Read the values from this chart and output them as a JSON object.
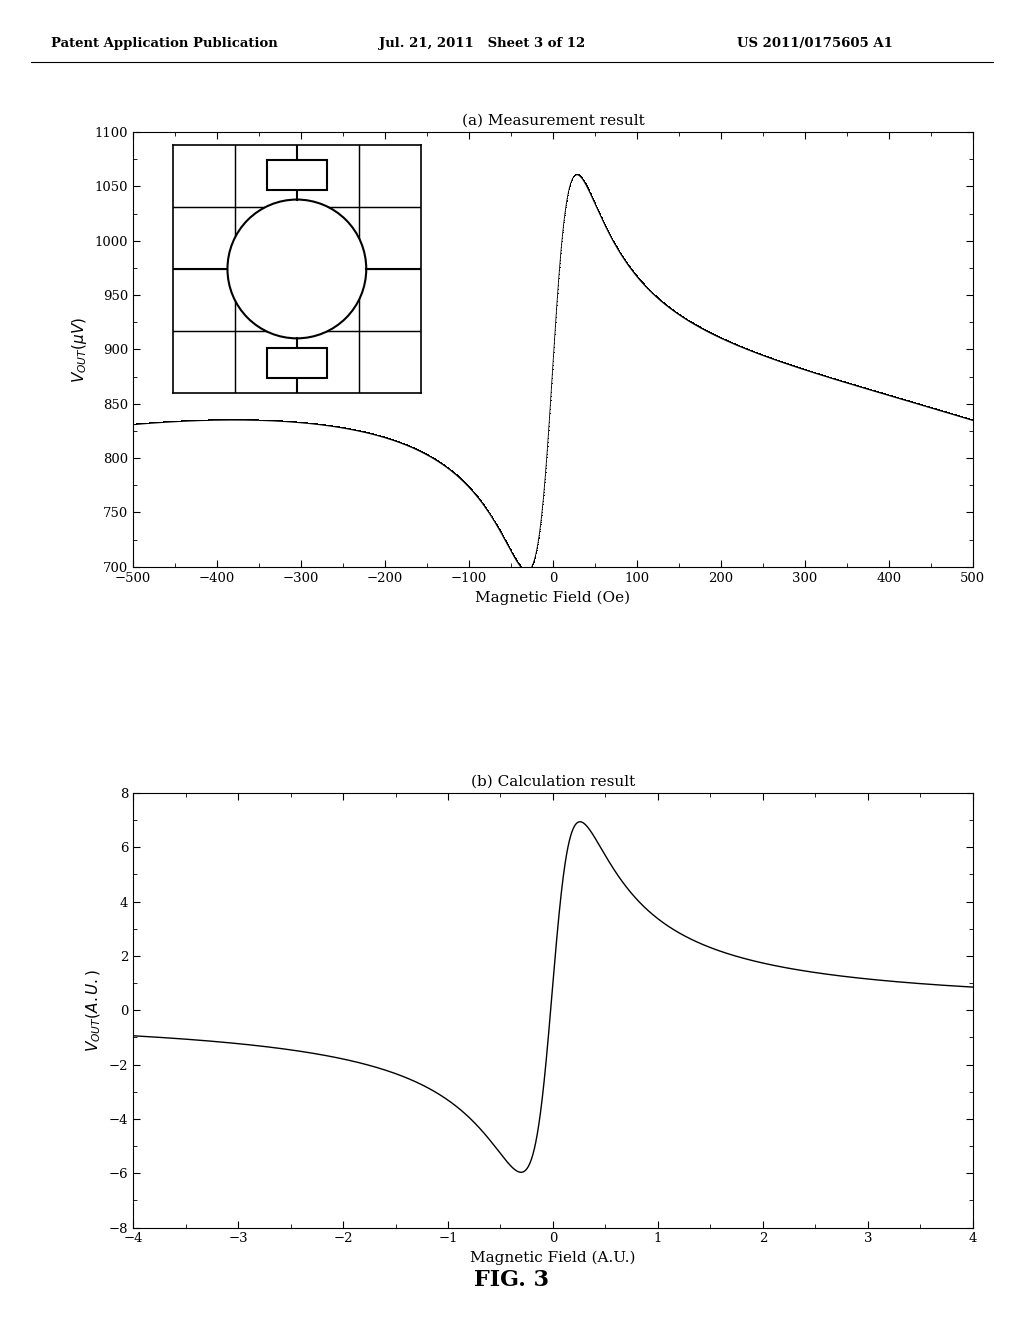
{
  "header_left": "Patent Application Publication",
  "header_center": "Jul. 21, 2011   Sheet 3 of 12",
  "header_right": "US 2011/0175605 A1",
  "fig_label": "FIG. 3",
  "plot_a_title": "(a) Measurement result",
  "plot_a_xlabel": "Magnetic Field (Oe)",
  "plot_a_ylabel": "V_OUT(uV)",
  "plot_a_xlim": [
    -500,
    500
  ],
  "plot_a_ylim": [
    700,
    1100
  ],
  "plot_a_xticks": [
    -500,
    -400,
    -300,
    -200,
    -100,
    0,
    100,
    200,
    300,
    400,
    500
  ],
  "plot_a_yticks": [
    700,
    750,
    800,
    850,
    900,
    950,
    1000,
    1050,
    1100
  ],
  "plot_b_title": "(b) Calculation result",
  "plot_b_xlabel": "Magnetic Field (A.U.)",
  "plot_b_ylabel": "V_OUT(A.U.)",
  "plot_b_xlim": [
    -4,
    4
  ],
  "plot_b_ylim": [
    -8,
    8
  ],
  "plot_b_xticks": [
    -4,
    -3,
    -2,
    -1,
    0,
    1,
    2,
    3,
    4
  ],
  "plot_b_yticks": [
    -8,
    -6,
    -4,
    -2,
    0,
    2,
    4,
    6,
    8
  ],
  "background_color": "#ffffff",
  "line_color": "#000000"
}
